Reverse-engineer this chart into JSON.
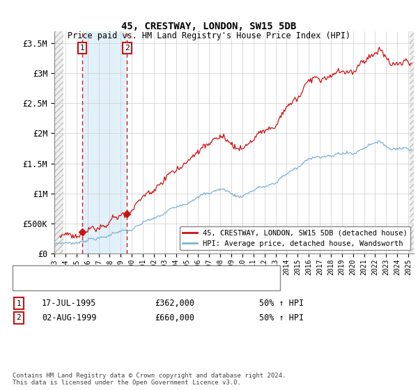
{
  "title": "45, CRESTWAY, LONDON, SW15 5DB",
  "subtitle": "Price paid vs. HM Land Registry's House Price Index (HPI)",
  "ylabel_ticks": [
    "£0",
    "£500K",
    "£1M",
    "£1.5M",
    "£2M",
    "£2.5M",
    "£3M",
    "£3.5M"
  ],
  "ytick_values": [
    0,
    500000,
    1000000,
    1500000,
    2000000,
    2500000,
    3000000,
    3500000
  ],
  "ylim": [
    0,
    3700000
  ],
  "xlim_start": 1993.0,
  "xlim_end": 2025.5,
  "purchase1_x": 1995.54,
  "purchase1_y": 362000,
  "purchase2_x": 1999.58,
  "purchase2_y": 660000,
  "legend1": "45, CRESTWAY, LONDON, SW15 5DB (detached house)",
  "legend2": "HPI: Average price, detached house, Wandsworth",
  "annotation1_date": "17-JUL-1995",
  "annotation1_price": "£362,000",
  "annotation1_hpi": "50% ↑ HPI",
  "annotation2_date": "02-AUG-1999",
  "annotation2_price": "£660,000",
  "annotation2_hpi": "50% ↑ HPI",
  "footnote": "Contains HM Land Registry data © Crown copyright and database right 2024.\nThis data is licensed under the Open Government Licence v3.0.",
  "hpi_color": "#7ab3d4",
  "price_color": "#cc1111",
  "grid_color": "#cccccc",
  "hatch_bg_color": "#e8e8e8",
  "blue_band_color": "#d0e8f5",
  "purchase_marker_color": "#cc1111",
  "box_label_color": "#cc1111"
}
